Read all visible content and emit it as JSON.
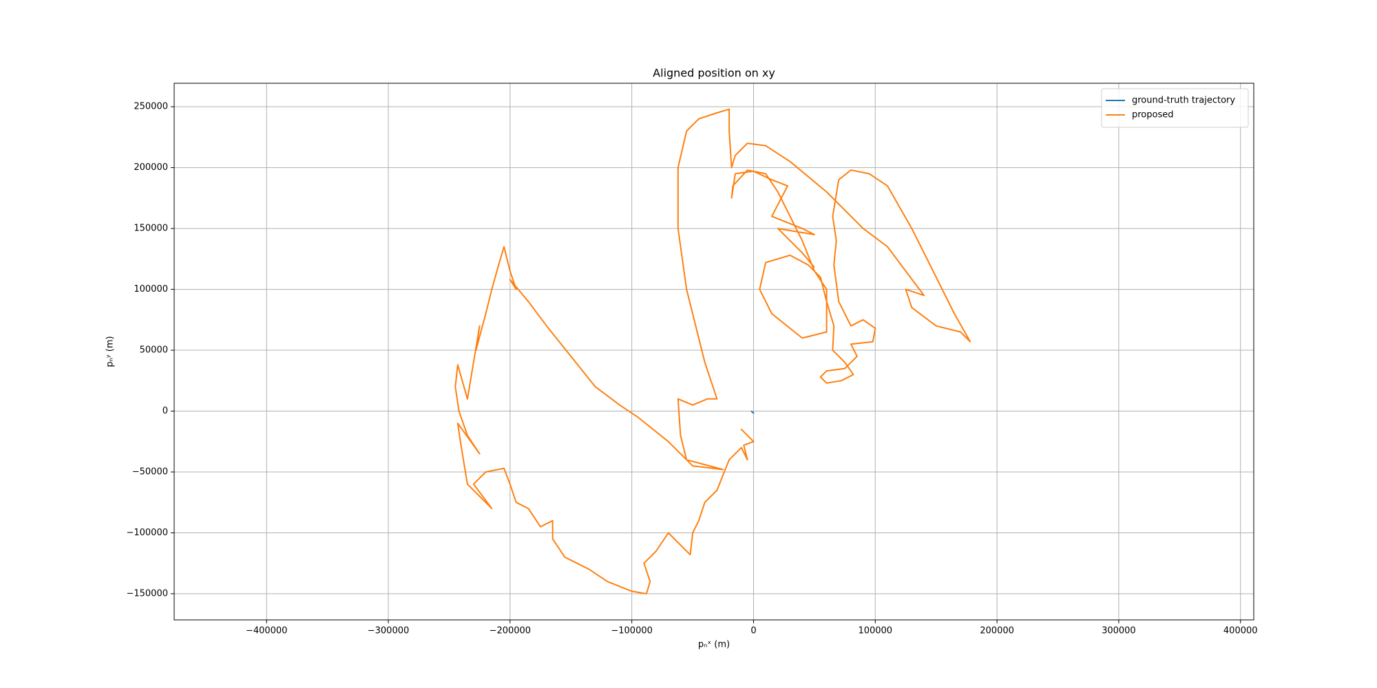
{
  "chart_data": {
    "type": "line",
    "title": "Aligned position on xy",
    "xlabel": "pₙˣ (m)",
    "ylabel": "pₙʸ (m)",
    "xlim": [
      -475900,
      410900
    ],
    "ylim": [
      -171500,
      269300
    ],
    "xticks": [
      {
        "value": -400000,
        "label": "−400000"
      },
      {
        "value": -300000,
        "label": "−300000"
      },
      {
        "value": -200000,
        "label": "−200000"
      },
      {
        "value": -100000,
        "label": "−100000"
      },
      0,
      100000,
      200000,
      300000,
      400000
    ],
    "yticks": [
      {
        "value": -150000,
        "label": "−150000"
      },
      {
        "value": -100000,
        "label": "−100000"
      },
      {
        "value": -50000,
        "label": "−50000"
      },
      0,
      50000,
      100000,
      150000,
      200000,
      250000
    ],
    "grid": true,
    "legend": "upper right",
    "series": [
      {
        "name": "ground-truth trajectory",
        "color": "#1f77b4",
        "x": [
          -2000,
          0,
          -1000
        ],
        "y": [
          0,
          -1500,
          -1000
        ]
      },
      {
        "name": "proposed",
        "color": "#ff7f0e",
        "x": [
          -5000,
          -10000,
          0,
          -8000,
          -5000,
          -10000,
          -20000,
          -30000,
          -40000,
          -45000,
          -50000,
          -52000,
          -60000,
          -70000,
          -80000,
          -90000,
          -85000,
          -88000,
          -100000,
          -120000,
          -135000,
          -145000,
          -155000,
          -165000,
          -165000,
          -175000,
          -185000,
          -195000,
          -200000,
          -205000,
          -220000,
          -230000,
          -215000,
          -235000,
          -240000,
          -243000,
          -225000,
          -235000,
          -242000,
          -245000,
          -243000,
          -235000,
          -230000,
          -225000,
          -228000,
          -220000,
          -215000,
          -210000,
          -205000,
          -200000,
          -195000,
          -200000,
          -185000,
          -170000,
          -150000,
          -130000,
          -110000,
          -95000,
          -70000,
          -50000,
          -25000,
          -55000,
          -60000,
          -62000,
          -50000,
          -38000,
          -30000,
          -40000,
          -55000,
          -62000,
          -62000,
          -55000,
          -45000,
          -30000,
          -20000,
          -20000,
          -18000,
          -15000,
          -5000,
          10000,
          30000,
          60000,
          90000,
          110000,
          125000,
          140000,
          125000,
          130000,
          150000,
          170000,
          178000,
          165000,
          150000,
          130000,
          110000,
          95000,
          80000,
          70000,
          65000,
          68000,
          66000,
          70000,
          80000,
          90000,
          100000,
          98000,
          80000,
          85000,
          75000,
          60000,
          55000,
          60000,
          72000,
          82000,
          75000,
          65000,
          66000,
          60000,
          55000,
          45000,
          30000,
          10000,
          5000,
          15000,
          40000,
          60000,
          60000,
          50000,
          40000,
          30000,
          20000,
          10000,
          -5000,
          -17000,
          -18000,
          -15000,
          0,
          15000,
          28000,
          15000,
          40000,
          50000,
          20000,
          30000,
          40000,
          50000
        ],
        "y": [
          -20000,
          -15000,
          -25000,
          -28000,
          -40000,
          -30000,
          -40000,
          -65000,
          -75000,
          -90000,
          -100000,
          -118000,
          -110000,
          -100000,
          -115000,
          -125000,
          -140000,
          -150000,
          -148000,
          -140000,
          -130000,
          -125000,
          -120000,
          -105000,
          -90000,
          -95000,
          -80000,
          -75000,
          -60000,
          -47000,
          -50000,
          -60000,
          -80000,
          -60000,
          -30000,
          -10000,
          -35000,
          -20000,
          0,
          20000,
          38000,
          10000,
          40000,
          70000,
          50000,
          80000,
          100000,
          118000,
          135000,
          115000,
          100000,
          108000,
          90000,
          70000,
          45000,
          20000,
          5000,
          -5000,
          -25000,
          -45000,
          -48000,
          -40000,
          -20000,
          10000,
          5000,
          10000,
          10000,
          40000,
          100000,
          150000,
          200000,
          230000,
          240000,
          245000,
          248000,
          230000,
          200000,
          210000,
          220000,
          218000,
          205000,
          180000,
          150000,
          135000,
          115000,
          95000,
          100000,
          85000,
          70000,
          65000,
          57000,
          80000,
          110000,
          150000,
          185000,
          195000,
          198000,
          190000,
          160000,
          140000,
          120000,
          90000,
          70000,
          75000,
          68000,
          57000,
          55000,
          45000,
          35000,
          33000,
          28000,
          23000,
          25000,
          30000,
          40000,
          50000,
          70000,
          90000,
          110000,
          120000,
          128000,
          122000,
          100000,
          80000,
          60000,
          65000,
          100000,
          115000,
          140000,
          160000,
          180000,
          195000,
          198000,
          185000,
          175000,
          195000,
          197000,
          190000,
          185000,
          160000,
          150000,
          145000,
          150000,
          140000,
          130000,
          118000
        ]
      }
    ]
  }
}
